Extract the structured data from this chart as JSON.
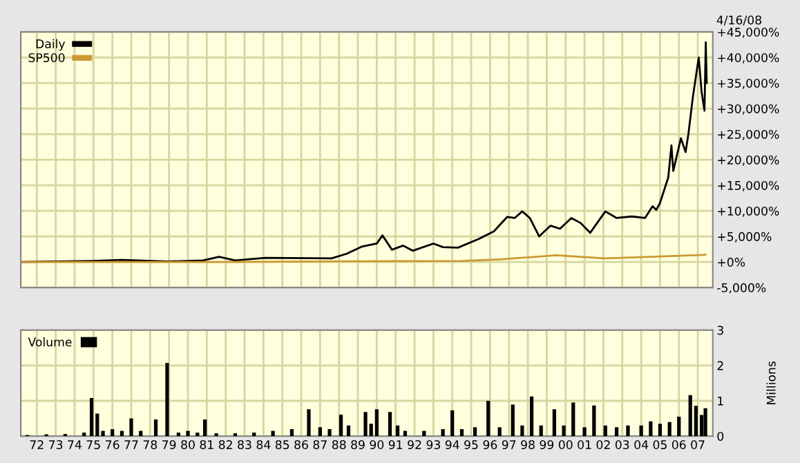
{
  "chart_data": [
    {
      "type": "line",
      "subtitle": "4/16/08",
      "legend": "top left",
      "grid": true,
      "tick_labels": "y",
      "xlim": [
        "1971-08-26",
        "2008-04-16"
      ],
      "xticks": [
        {
          "value": "1972-07-01",
          "label": null
        },
        {
          "value": "1973-07-01",
          "label": null
        },
        {
          "value": "1974-07-01",
          "label": null
        },
        {
          "value": "1975-07-01",
          "label": null
        },
        {
          "value": "1976-07-01",
          "label": null
        },
        {
          "value": "1977-07-01",
          "label": null
        },
        {
          "value": "1978-07-01",
          "label": null
        },
        {
          "value": "1979-07-01",
          "label": null
        },
        {
          "value": "1980-07-01",
          "label": null
        },
        {
          "value": "1981-07-01",
          "label": null
        },
        {
          "value": "1982-07-01",
          "label": null
        },
        {
          "value": "1983-07-01",
          "label": null
        },
        {
          "value": "1984-07-01",
          "label": null
        },
        {
          "value": "1985-07-01",
          "label": null
        },
        {
          "value": "1986-07-01",
          "label": null
        },
        {
          "value": "1987-07-01",
          "label": null
        },
        {
          "value": "1988-07-01",
          "label": null
        },
        {
          "value": "1989-07-01",
          "label": null
        },
        {
          "value": "1990-07-01",
          "label": null
        },
        {
          "value": "1991-07-01",
          "label": null
        },
        {
          "value": "1992-07-01",
          "label": null
        },
        {
          "value": "1993-07-01",
          "label": null
        },
        {
          "value": "1994-07-01",
          "label": null
        },
        {
          "value": "1995-07-01",
          "label": null
        },
        {
          "value": "1996-07-01",
          "label": null
        },
        {
          "value": "1997-07-01",
          "label": null
        },
        {
          "value": "1998-07-01",
          "label": null
        },
        {
          "value": "1999-07-01",
          "label": null
        },
        {
          "value": "2000-07-01",
          "label": null
        },
        {
          "value": "2001-07-01",
          "label": null
        },
        {
          "value": "2002-07-01",
          "label": null
        },
        {
          "value": "2003-07-01",
          "label": null
        },
        {
          "value": "2004-07-01",
          "label": null
        },
        {
          "value": "2005-07-01",
          "label": null
        },
        {
          "value": "2006-07-01",
          "label": null
        },
        {
          "value": "2007-07-01",
          "label": null
        }
      ],
      "ylim": [
        -5000,
        45000
      ],
      "yticks": [
        {
          "value": -5000,
          "label": "-5,000%"
        },
        {
          "value": 0,
          "label": "+0%"
        },
        {
          "value": 5000,
          "label": "+5,000%"
        },
        {
          "value": 10000,
          "label": "+10,000%"
        },
        {
          "value": 15000,
          "label": "+15,000%"
        },
        {
          "value": 20000,
          "label": "+20,000%"
        },
        {
          "value": 25000,
          "label": "+25,000%"
        },
        {
          "value": 30000,
          "label": "+30,000%"
        },
        {
          "value": 35000,
          "label": "+35,000%"
        },
        {
          "value": 40000,
          "label": "+40,000%"
        },
        {
          "value": 45000,
          "label": "+45,000%"
        }
      ],
      "series": [
        {
          "name": "Daily",
          "color": "#000000",
          "x": [
            "1971-08-26",
            "1975-05-26",
            "1977-01-01",
            "1979-06-14",
            "1981-04-20",
            "1982-02-24",
            "1983-01-01",
            "1984-08-08",
            "1988-02-06",
            "1988-11-25",
            "1989-09-13",
            "1990-07-01",
            "1990-10-19",
            "1991-04-20",
            "1991-11-25",
            "1992-05-26",
            "1993-07-01",
            "1994-01-01",
            "1994-10-19",
            "1995-11-25",
            "1996-09-13",
            "1997-05-26",
            "1997-10-19",
            "1998-03-14",
            "1998-08-08",
            "1999-02-06",
            "1999-09-13",
            "2000-03-14",
            "2000-10-19",
            "2001-04-20",
            "2001-10-19",
            "2002-08-08",
            "2003-03-14",
            "2004-01-01",
            "2004-09-13",
            "2005-02-06",
            "2005-04-20",
            "2005-06-28",
            "2005-12-06",
            "2006-02-06",
            "2006-03-14",
            "2006-08-08",
            "2006-11-07",
            "2007-01-01",
            "2007-03-28",
            "2007-07-19",
            "2007-09-13",
            "2007-11-07",
            "2007-12-02",
            "2007-12-20"
          ],
          "values": [
            0,
            200,
            400,
            100,
            300,
            1000,
            300,
            800,
            700,
            1600,
            3000,
            3600,
            5200,
            2400,
            3200,
            2200,
            3600,
            2900,
            2800,
            4500,
            6000,
            8800,
            8600,
            9900,
            8600,
            5000,
            7100,
            6500,
            8600,
            7600,
            5700,
            9900,
            8600,
            8900,
            8600,
            10900,
            10200,
            11500,
            16500,
            22800,
            17800,
            24200,
            21500,
            25100,
            32300,
            40000,
            33200,
            29600,
            43000,
            35000
          ]
        },
        {
          "name": "SP500",
          "color": "#cc9933",
          "x": [
            "1971-08-26",
            "1982-01-01",
            "1987-08-01",
            "1995-01-01",
            "1997-01-01",
            "2000-01-01",
            "2002-08-01",
            "2005-01-01",
            "2007-11-25"
          ],
          "values": [
            0,
            0,
            100,
            200,
            500,
            1300,
            700,
            1000,
            1400
          ]
        }
      ]
    },
    {
      "type": "bar",
      "legend": "top left",
      "grid": true,
      "ylabel": "Millions",
      "xlim": [
        "1971-08-26",
        "2008-04-16"
      ],
      "xticks": [
        {
          "value": "1972-07-01",
          "label": "72"
        },
        {
          "value": "1973-07-01",
          "label": "73"
        },
        {
          "value": "1974-07-01",
          "label": "74"
        },
        {
          "value": "1975-07-01",
          "label": "75"
        },
        {
          "value": "1976-07-01",
          "label": "76"
        },
        {
          "value": "1977-07-01",
          "label": "77"
        },
        {
          "value": "1978-07-01",
          "label": "78"
        },
        {
          "value": "1979-07-01",
          "label": "79"
        },
        {
          "value": "1980-07-01",
          "label": "80"
        },
        {
          "value": "1981-07-01",
          "label": "81"
        },
        {
          "value": "1982-07-01",
          "label": "82"
        },
        {
          "value": "1983-07-01",
          "label": "83"
        },
        {
          "value": "1984-07-01",
          "label": "84"
        },
        {
          "value": "1985-07-01",
          "label": "85"
        },
        {
          "value": "1986-07-01",
          "label": "86"
        },
        {
          "value": "1987-07-01",
          "label": "87"
        },
        {
          "value": "1988-07-01",
          "label": "88"
        },
        {
          "value": "1989-07-01",
          "label": "89"
        },
        {
          "value": "1990-07-01",
          "label": "90"
        },
        {
          "value": "1991-07-01",
          "label": "91"
        },
        {
          "value": "1992-07-01",
          "label": "92"
        },
        {
          "value": "1993-07-01",
          "label": "93"
        },
        {
          "value": "1994-07-01",
          "label": "94"
        },
        {
          "value": "1995-07-01",
          "label": "95"
        },
        {
          "value": "1996-07-01",
          "label": "96"
        },
        {
          "value": "1997-07-01",
          "label": "97"
        },
        {
          "value": "1998-07-01",
          "label": "98"
        },
        {
          "value": "1999-07-01",
          "label": "99"
        },
        {
          "value": "2000-07-01",
          "label": "00"
        },
        {
          "value": "2001-07-01",
          "label": "01"
        },
        {
          "value": "2002-07-01",
          "label": "02"
        },
        {
          "value": "2003-07-01",
          "label": "03"
        },
        {
          "value": "2004-07-01",
          "label": "04"
        },
        {
          "value": "2005-07-01",
          "label": "05"
        },
        {
          "value": "2006-07-01",
          "label": "06"
        },
        {
          "value": "2007-07-01",
          "label": "07"
        }
      ],
      "ylim": [
        0,
        3
      ],
      "yticks": [
        0,
        1,
        2,
        3
      ],
      "series": [
        {
          "name": "Volume",
          "color": "#000000",
          "x": [
            "1972-01-01",
            "1973-01-01",
            "1974-01-01",
            "1975-01-01",
            "1975-05-26",
            "1975-09-13",
            "1976-01-01",
            "1976-07-01",
            "1977-01-01",
            "1977-07-01",
            "1978-01-01",
            "1978-10-19",
            "1979-05-26",
            "1980-01-01",
            "1980-07-01",
            "1981-01-01",
            "1981-05-26",
            "1982-01-01",
            "1983-01-01",
            "1984-01-01",
            "1985-01-01",
            "1986-01-01",
            "1986-11-25",
            "1987-07-01",
            "1988-01-01",
            "1988-08-08",
            "1989-01-01",
            "1989-11-25",
            "1990-03-14",
            "1990-07-01",
            "1991-03-14",
            "1991-08-08",
            "1992-01-01",
            "1993-01-01",
            "1994-01-01",
            "1994-07-01",
            "1995-01-01",
            "1995-09-13",
            "1996-05-26",
            "1997-01-01",
            "1997-09-13",
            "1998-03-14",
            "1998-09-13",
            "1999-03-14",
            "1999-11-25",
            "2000-05-26",
            "2000-11-25",
            "2001-07-01",
            "2002-01-01",
            "2002-08-08",
            "2003-03-14",
            "2003-10-19",
            "2004-07-01",
            "2005-01-01",
            "2005-07-01",
            "2006-01-01",
            "2006-07-01",
            "2007-02-06",
            "2007-05-26",
            "2007-09-13",
            "2007-11-25"
          ],
          "values": [
            0.03,
            0.05,
            0.06,
            0.1,
            1.08,
            0.64,
            0.15,
            0.2,
            0.15,
            0.5,
            0.15,
            0.47,
            2.07,
            0.1,
            0.15,
            0.1,
            0.47,
            0.08,
            0.08,
            0.1,
            0.15,
            0.2,
            0.76,
            0.25,
            0.2,
            0.61,
            0.3,
            0.68,
            0.35,
            0.76,
            0.68,
            0.3,
            0.15,
            0.15,
            0.2,
            0.73,
            0.2,
            0.25,
            1.0,
            0.25,
            0.89,
            0.3,
            1.12,
            0.3,
            0.76,
            0.3,
            0.95,
            0.25,
            0.87,
            0.3,
            0.25,
            0.3,
            0.3,
            0.42,
            0.35,
            0.4,
            0.55,
            1.16,
            0.86,
            0.6,
            0.79
          ]
        }
      ]
    }
  ]
}
